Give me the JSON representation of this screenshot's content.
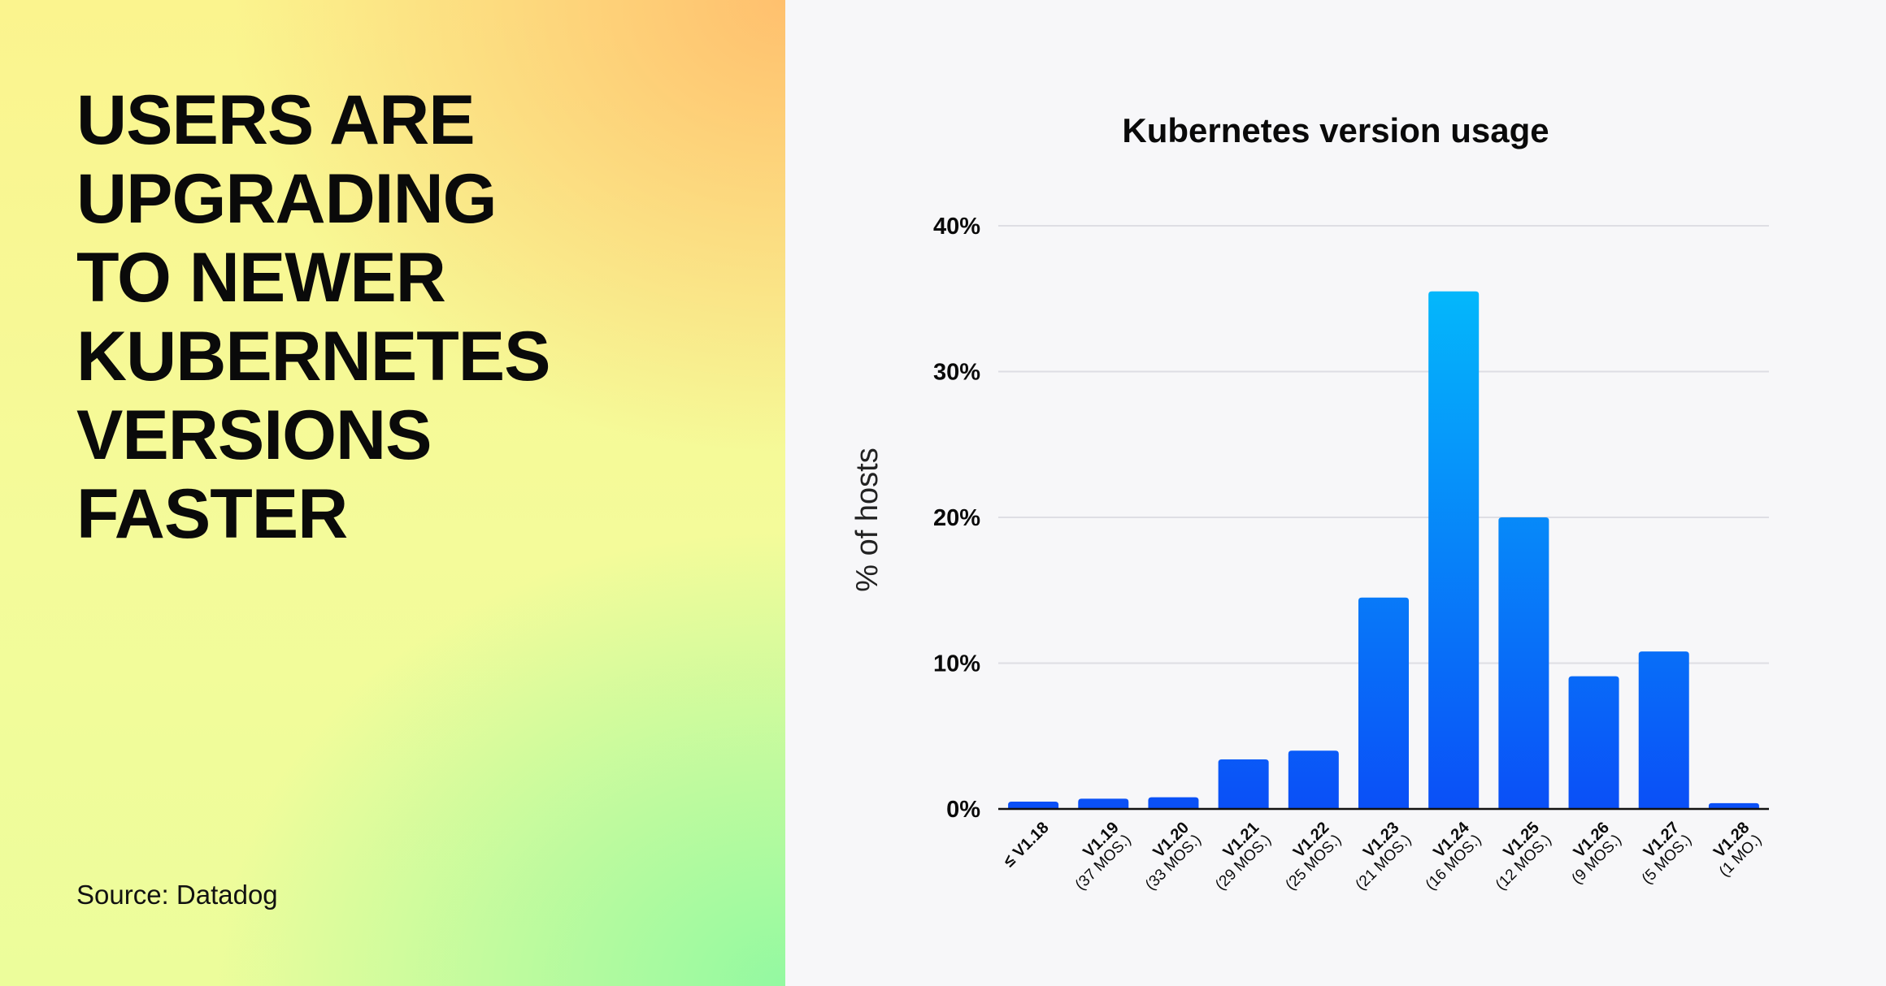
{
  "headline": "USERS ARE\nUPGRADING\nTO NEWER\nKUBERNETES\nVERSIONS\nFASTER",
  "source": "Source: Datadog",
  "colors": {
    "bar_top_tall": "#04b7fb",
    "bar_bottom": "#0a4ff7",
    "grid": "#dedee4"
  },
  "chart_data": {
    "type": "bar",
    "title": "Kubernetes version usage",
    "ylabel": "% of hosts",
    "xlabel": "",
    "ylim": [
      0,
      40
    ],
    "yticks": [
      0,
      10,
      20,
      30,
      40
    ],
    "ytick_labels": [
      "0%",
      "10%",
      "20%",
      "30%",
      "40%"
    ],
    "grid": true,
    "categories": [
      {
        "main": "≤ V1.18",
        "sub": ""
      },
      {
        "main": "V1.19",
        "sub": "(37 MOS.)"
      },
      {
        "main": "V1.20",
        "sub": "(33 MOS.)"
      },
      {
        "main": "V1.21",
        "sub": "(29 MOS.)"
      },
      {
        "main": "V1.22",
        "sub": "(25 MOS.)"
      },
      {
        "main": "V1.23",
        "sub": "(21 MOS.)"
      },
      {
        "main": "V1.24",
        "sub": "(16 MOS.)"
      },
      {
        "main": "V1.25",
        "sub": "(12 MOS.)"
      },
      {
        "main": "V1.26",
        "sub": "(9 MOS.)"
      },
      {
        "main": "V1.27",
        "sub": "(5 MOS.)"
      },
      {
        "main": "V1.28",
        "sub": "(1 MO.)"
      }
    ],
    "values": [
      0.5,
      0.7,
      0.8,
      3.4,
      4.0,
      14.5,
      35.5,
      20.0,
      9.1,
      10.8,
      0.4
    ]
  }
}
